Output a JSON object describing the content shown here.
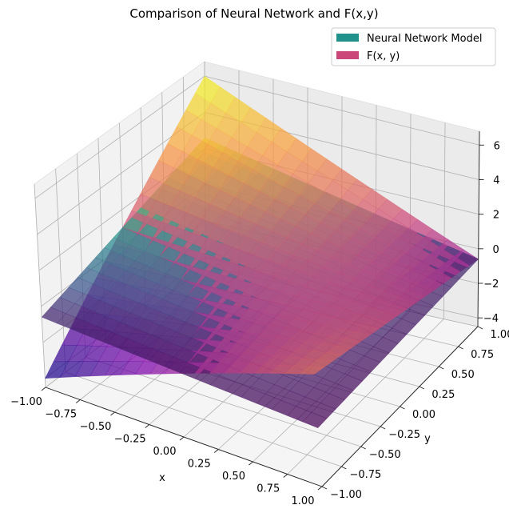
{
  "chart_data": {
    "type": "surface3d",
    "title": "Comparison of Neural Network and F(x,y)",
    "xlabel": "x",
    "ylabel": "y",
    "zlabel": "",
    "xlim": [
      -1.0,
      1.0
    ],
    "ylim": [
      -1.0,
      1.0
    ],
    "zlim": [
      -4.5,
      6.8
    ],
    "x_ticks": [
      "−1.00",
      "−0.75",
      "−0.50",
      "−0.25",
      "0.00",
      "0.25",
      "0.50",
      "0.75",
      "1.00"
    ],
    "y_ticks": [
      "−1.00",
      "−0.75",
      "−0.50",
      "−0.25",
      "0.00",
      "0.25",
      "0.50",
      "0.75",
      "1.00"
    ],
    "z_ticks": [
      "−4",
      "−2",
      "0",
      "2",
      "4",
      "6"
    ],
    "legend_position": "top-right",
    "series": [
      {
        "name": "Neural Network Model",
        "legend_color": "#21918c",
        "colormap": "viridis",
        "corner_values": {
          "x-1_y-1": -0.6,
          "x1_y-1": -0.9,
          "x-1_y1": 2.6,
          "x1_y1": -0.6
        }
      },
      {
        "name": "F(x, y)",
        "legend_color": "#cb4679",
        "colormap": "plasma",
        "corner_values": {
          "x-1_y-1": -4.0,
          "x1_y-1": 2.4,
          "x-1_y1": 6.0,
          "x1_y1": -0.6
        }
      }
    ]
  }
}
